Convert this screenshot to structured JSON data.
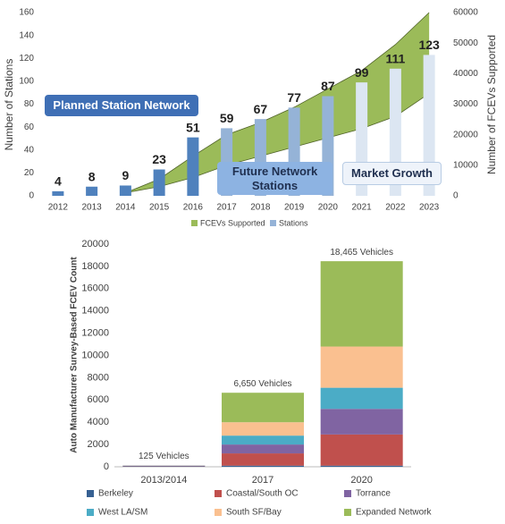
{
  "chart_data": [
    {
      "type": "combo",
      "categories": [
        "2012",
        "2013",
        "2014",
        "2015",
        "2016",
        "2017",
        "2018",
        "2019",
        "2020",
        "2021",
        "2022",
        "2023"
      ],
      "ylabel": "Number of Stations",
      "y2label": "Number of FCEVs  Supported",
      "ylim": [
        0,
        160
      ],
      "yticks": [
        0,
        20,
        40,
        60,
        80,
        100,
        120,
        140,
        160
      ],
      "y2lim": [
        0,
        60000
      ],
      "y2ticks": [
        0,
        10000,
        20000,
        30000,
        40000,
        50000,
        60000
      ],
      "series": [
        {
          "name": "FCEVs Supported",
          "type": "area",
          "axis": "y2",
          "color": "#9bbb59",
          "values": [
            null,
            null,
            1000,
            5500,
            13000,
            20000,
            24000,
            29000,
            35000,
            41000,
            49500,
            60000
          ],
          "lower": [
            null,
            null,
            1000,
            3000,
            6000,
            10000,
            13000,
            16000,
            19000,
            22000,
            26000,
            33500
          ]
        },
        {
          "name": "Stations",
          "type": "bar",
          "color": "#95b3d7",
          "colors": [
            "#4f81bd",
            "#4f81bd",
            "#4f81bd",
            "#4f81bd",
            "#4f81bd",
            "#95b3d7",
            "#95b3d7",
            "#95b3d7",
            "#95b3d7",
            "#dce6f2",
            "#dce6f2",
            "#dce6f2"
          ],
          "values": [
            4,
            8,
            9,
            23,
            51,
            59,
            67,
            77,
            87,
            99,
            111,
            123
          ]
        }
      ],
      "annotations": [
        "Planned Station Network",
        "Future Network Stations",
        "Market Growth"
      ]
    },
    {
      "type": "stacked_bar",
      "categories": [
        "2013/2014",
        "2017",
        "2020"
      ],
      "ylabel": "Auto Manufacturer Survey-Based FCEV Count",
      "ylim": [
        0,
        20000
      ],
      "yticks": [
        0,
        2000,
        4000,
        6000,
        8000,
        10000,
        12000,
        14000,
        16000,
        18000,
        20000
      ],
      "total_labels": [
        "125 Vehicles",
        "6,650 Vehicles",
        "18,465 Vehicles"
      ],
      "series": [
        {
          "name": "Berkeley",
          "color": "#366092",
          "values": [
            40,
            100,
            100
          ]
        },
        {
          "name": "Coastal/South OC",
          "color": "#c0504d",
          "values": [
            30,
            1100,
            2800
          ]
        },
        {
          "name": "Torrance",
          "color": "#8064a2",
          "values": [
            25,
            800,
            2300
          ]
        },
        {
          "name": "West LA/SM",
          "color": "#4bacc6",
          "values": [
            15,
            800,
            1900
          ]
        },
        {
          "name": "South SF/Bay",
          "color": "#fac090",
          "values": [
            15,
            1200,
            3700
          ]
        },
        {
          "name": "Expanded Network",
          "color": "#9bbb59",
          "values": [
            0,
            2650,
            7665
          ]
        }
      ]
    }
  ]
}
